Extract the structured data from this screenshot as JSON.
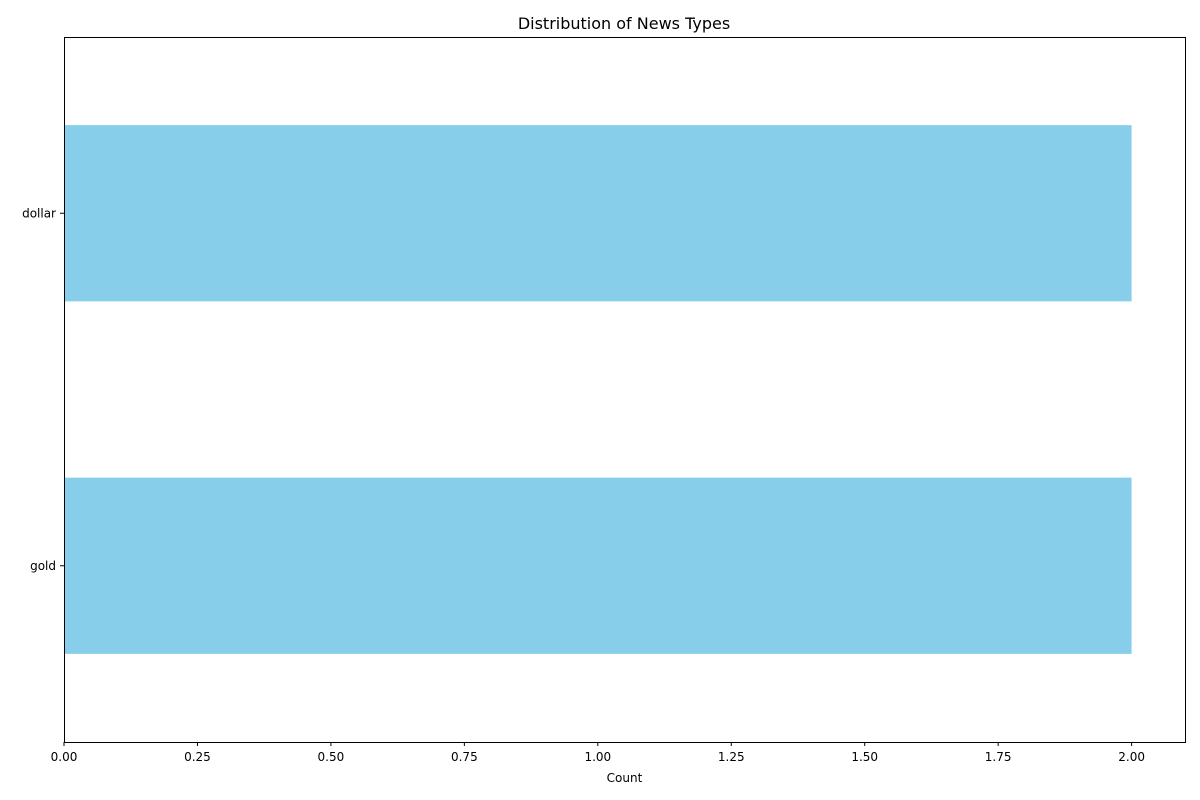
{
  "chart_data": {
    "type": "bar",
    "orientation": "horizontal",
    "title": "Distribution of News Types",
    "xlabel": "Count",
    "ylabel": "",
    "categories": [
      "dollar",
      "gold"
    ],
    "values": [
      2,
      2
    ],
    "xlim": [
      0,
      2.1
    ],
    "xticks": [
      0.0,
      0.25,
      0.5,
      0.75,
      1.0,
      1.25,
      1.5,
      1.75,
      2.0
    ],
    "xtick_labels": [
      "0.00",
      "0.25",
      "0.50",
      "0.75",
      "1.00",
      "1.25",
      "1.50",
      "1.75",
      "2.00"
    ],
    "bar_color": "#87ceeb",
    "grid": false,
    "legend": "none"
  }
}
